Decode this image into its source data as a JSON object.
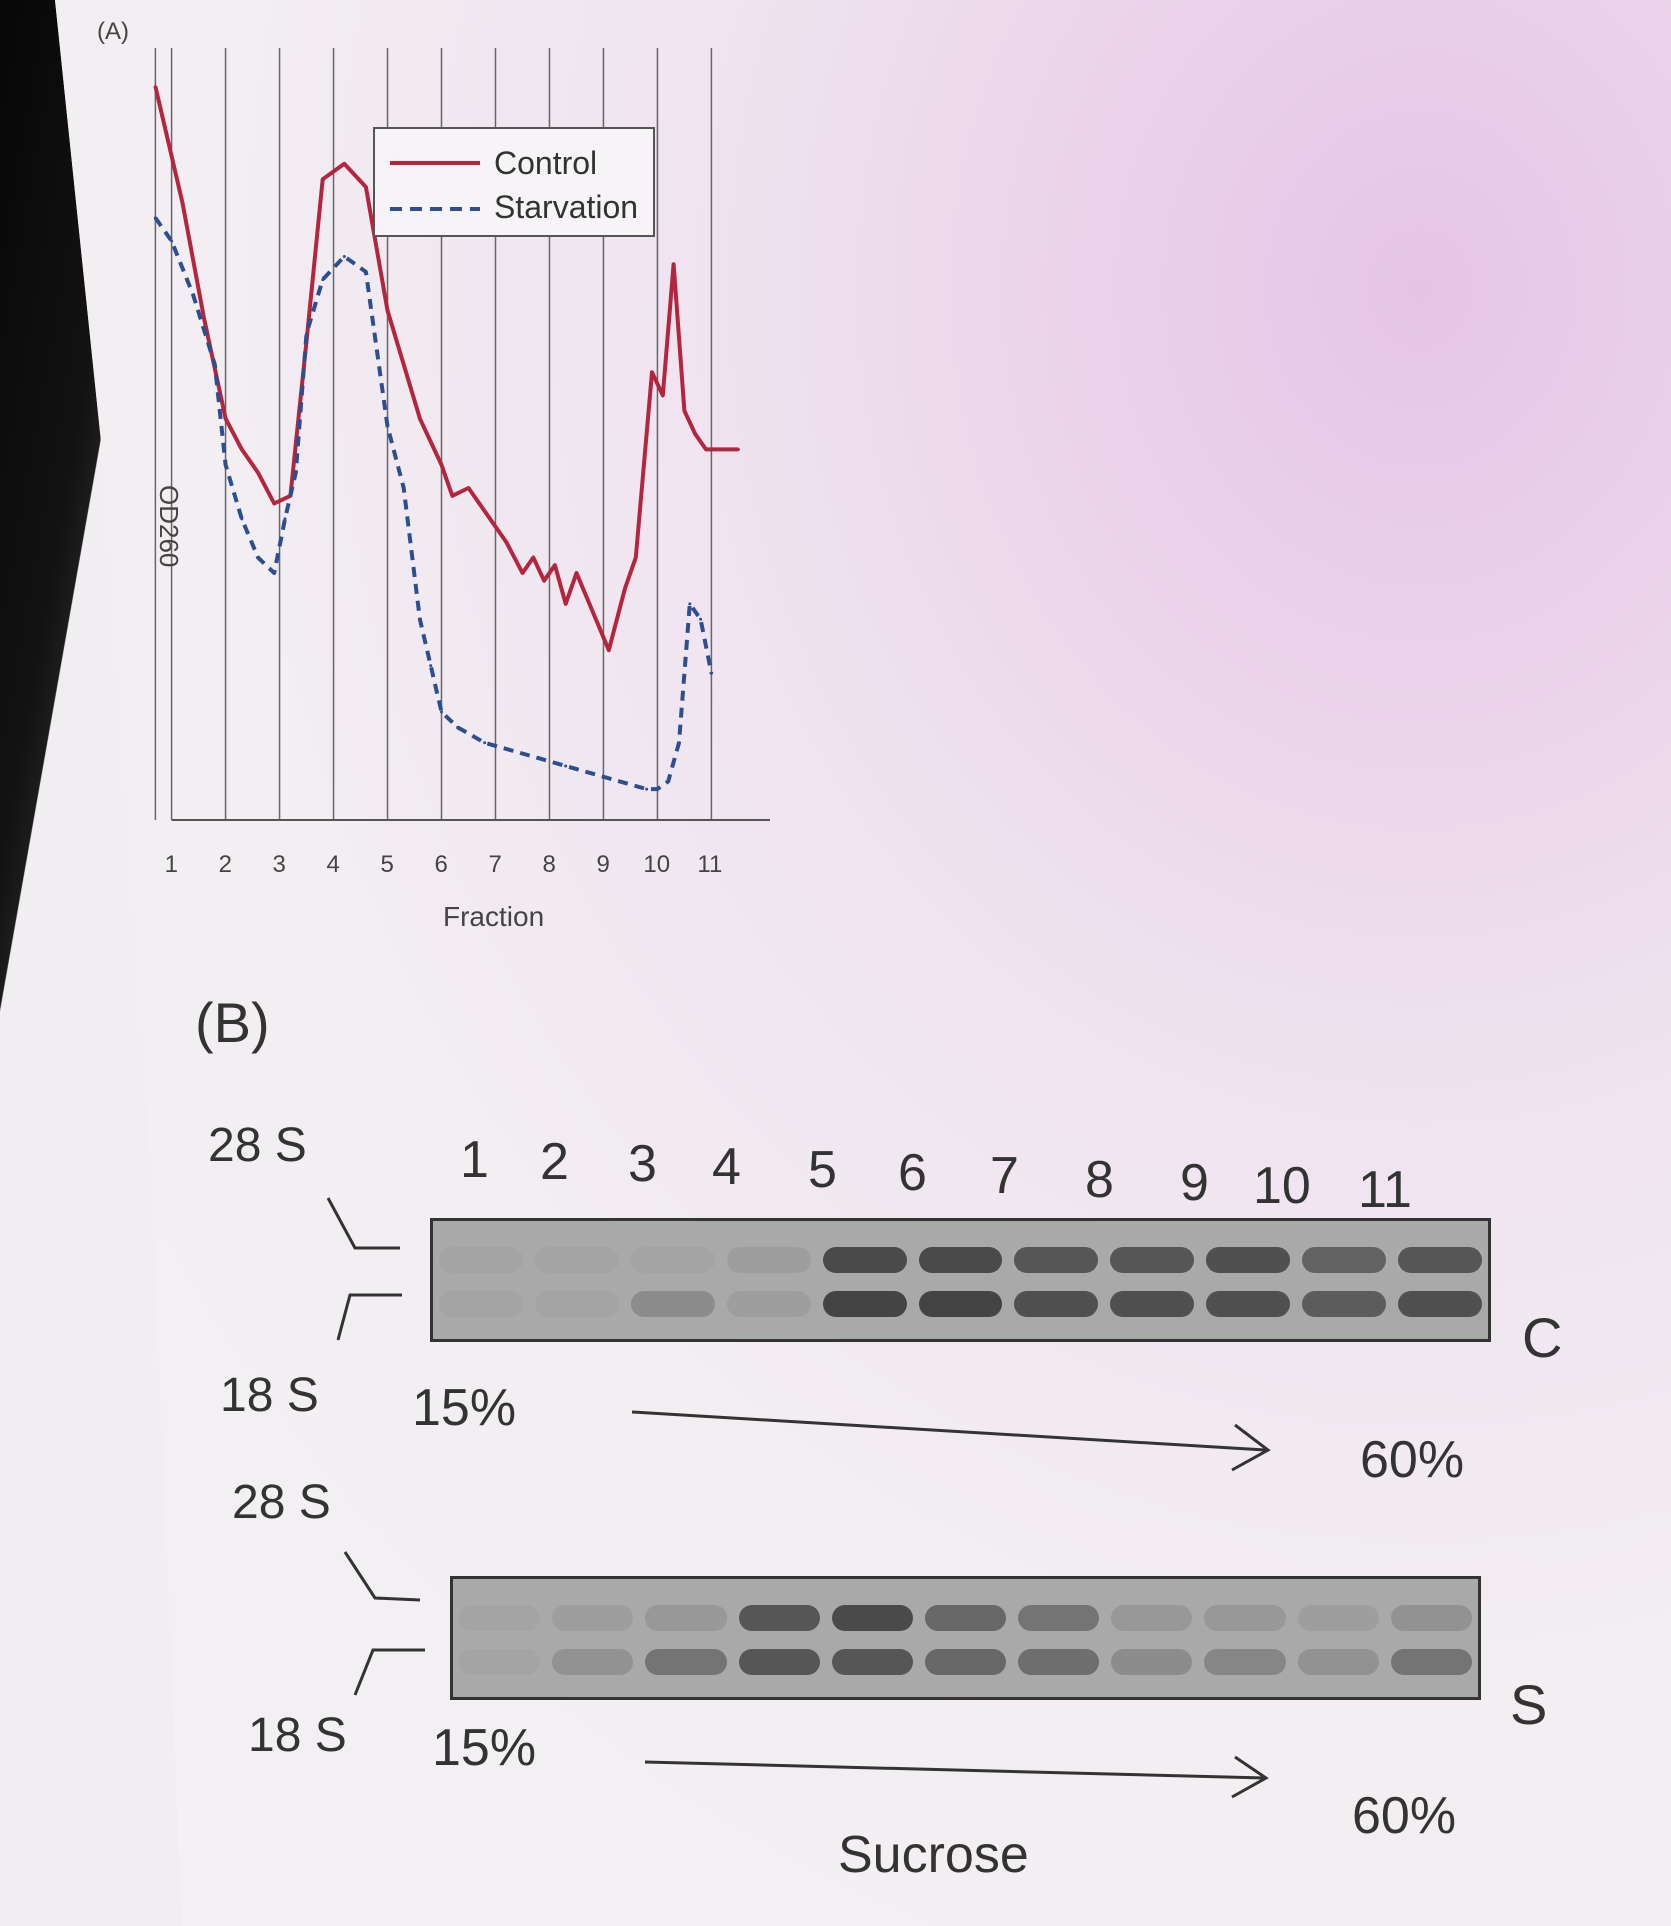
{
  "panel_a": {
    "label": "(A)"
  },
  "panel_b": {
    "label": "(B)"
  },
  "chart_data": {
    "type": "line",
    "title": "",
    "xlabel": "Fraction",
    "ylabel": "OD260",
    "x_ticks": [
      "1",
      "2",
      "3",
      "4",
      "5",
      "6",
      "7",
      "8",
      "9",
      "10",
      "11"
    ],
    "xlim": [
      0.6,
      11.9
    ],
    "ylim": [
      0,
      10
    ],
    "grid": "vertical",
    "legend": "top-center",
    "colors": {
      "control": "#b3263e",
      "starvation": "#2e4f8f"
    },
    "series": [
      {
        "name": "Control",
        "style": "solid",
        "x": [
          0.7,
          1.2,
          1.6,
          2.0,
          2.3,
          2.6,
          2.9,
          3.2,
          3.5,
          3.8,
          4.2,
          4.6,
          5.0,
          5.3,
          5.6,
          6.0,
          6.2,
          6.5,
          6.8,
          7.2,
          7.5,
          7.7,
          7.9,
          8.1,
          8.3,
          8.5,
          8.8,
          9.1,
          9.4,
          9.6,
          9.9,
          10.1,
          10.3,
          10.5,
          10.7,
          10.9,
          11.2,
          11.5
        ],
        "y": [
          9.5,
          8.0,
          6.5,
          5.2,
          4.8,
          4.5,
          4.1,
          4.2,
          6.2,
          8.3,
          8.5,
          8.2,
          6.6,
          5.9,
          5.2,
          4.6,
          4.2,
          4.3,
          4.0,
          3.6,
          3.2,
          3.4,
          3.1,
          3.3,
          2.8,
          3.2,
          2.7,
          2.2,
          3.0,
          3.4,
          5.8,
          5.5,
          7.2,
          5.3,
          5.0,
          4.8,
          4.8,
          4.8
        ]
      },
      {
        "name": "Starvation",
        "style": "dashed",
        "x": [
          0.7,
          1.0,
          1.4,
          1.8,
          2.0,
          2.3,
          2.6,
          2.9,
          3.1,
          3.3,
          3.5,
          3.8,
          4.2,
          4.6,
          5.0,
          5.3,
          5.6,
          5.8,
          6.0,
          6.3,
          6.8,
          7.3,
          7.8,
          8.3,
          8.8,
          9.3,
          9.8,
          10.0,
          10.2,
          10.4,
          10.6,
          10.8,
          11.0
        ],
        "y": [
          7.8,
          7.5,
          6.8,
          5.9,
          4.6,
          3.9,
          3.4,
          3.2,
          3.9,
          4.5,
          6.3,
          7.0,
          7.3,
          7.1,
          5.1,
          4.3,
          2.6,
          2.0,
          1.4,
          1.2,
          1.0,
          0.9,
          0.8,
          0.7,
          0.6,
          0.5,
          0.4,
          0.4,
          0.5,
          1.0,
          2.8,
          2.6,
          1.9
        ]
      }
    ]
  },
  "gel_figure": {
    "lane_numbers": [
      "1",
      "2",
      "3",
      "4",
      "5",
      "6",
      "7",
      "8",
      "9",
      "10",
      "11"
    ],
    "marker_top": "28 S",
    "marker_bottom": "18 S",
    "gradient_start": "15%",
    "gradient_end": "60%",
    "gradient_label": "Sucrose",
    "control_gel": {
      "side_label": "C",
      "band_intensity_28s": [
        0.05,
        0.05,
        0.05,
        0.1,
        0.8,
        0.8,
        0.7,
        0.7,
        0.75,
        0.6,
        0.7
      ],
      "band_intensity_18s": [
        0.05,
        0.05,
        0.25,
        0.1,
        0.85,
        0.85,
        0.75,
        0.75,
        0.75,
        0.65,
        0.75
      ]
    },
    "starvation_gel": {
      "side_label": "S",
      "band_intensity_28s": [
        0.05,
        0.1,
        0.15,
        0.7,
        0.8,
        0.55,
        0.45,
        0.15,
        0.15,
        0.1,
        0.2
      ],
      "band_intensity_18s": [
        0.05,
        0.2,
        0.45,
        0.7,
        0.7,
        0.55,
        0.5,
        0.25,
        0.3,
        0.2,
        0.45
      ]
    }
  }
}
